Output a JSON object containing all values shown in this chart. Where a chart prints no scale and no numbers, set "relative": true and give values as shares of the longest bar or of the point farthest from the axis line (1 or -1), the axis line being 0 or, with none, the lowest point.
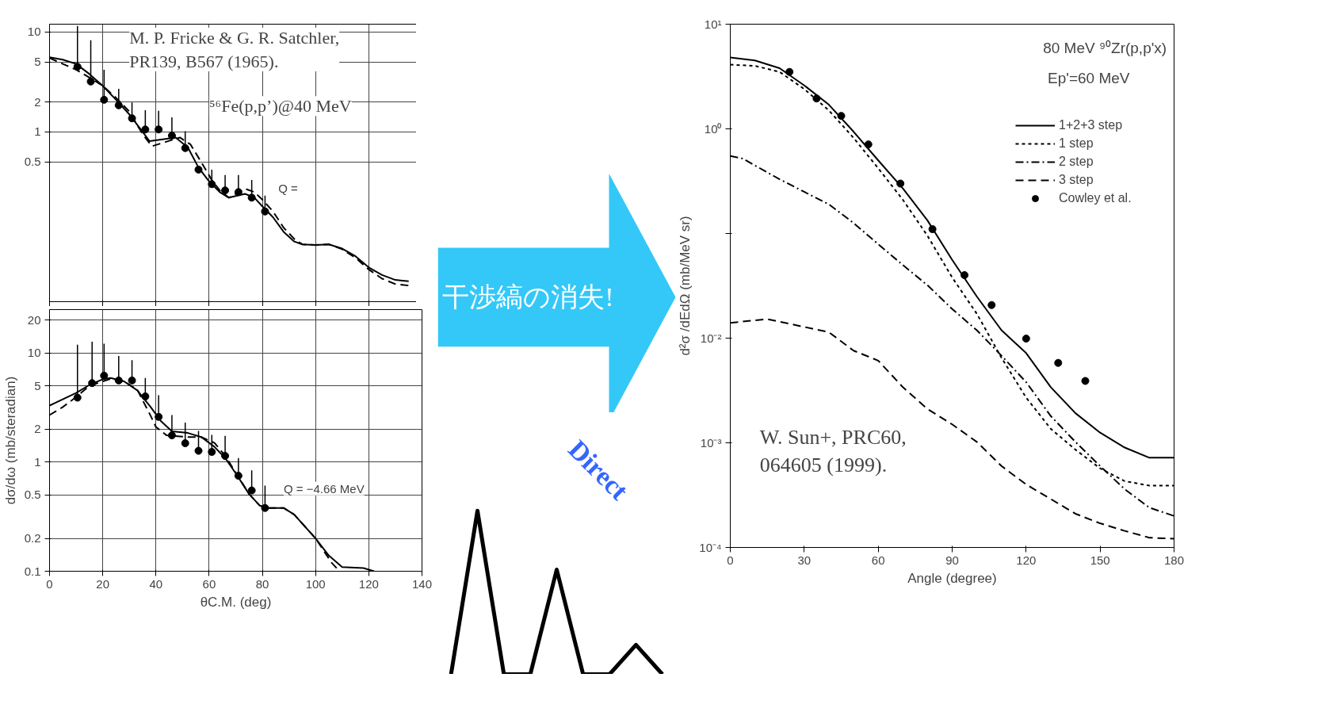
{
  "chart_data": [
    {
      "type": "line",
      "xlim": [
        0,
        140
      ],
      "xticks": [
        0,
        20,
        40,
        60,
        80,
        100,
        120,
        140
      ],
      "ylim": [
        0.02,
        12
      ],
      "yticks": [
        0.5,
        1,
        2,
        5,
        10
      ],
      "log": true,
      "grid": true,
      "tick_labels": "y",
      "annotations": [
        "M. P. Fricke & G. R. Satchler,\nPR139, B567 (1965).",
        "⁵⁶Fe(p,p’)@40 MeV",
        "Q ="
      ],
      "series": [
        {
          "type": "line",
          "color": "#000000",
          "line_style": "solid",
          "x": [
            0,
            5,
            10,
            15,
            20,
            25,
            30,
            35,
            37.6,
            42,
            47.4,
            52,
            56,
            60,
            64,
            67.4,
            73.5,
            77,
            80,
            84,
            88,
            92,
            95,
            100,
            105,
            110,
            115,
            120,
            125,
            130,
            135
          ],
          "values": [
            5.6,
            5.3,
            4.8,
            3.8,
            2.9,
            2.1,
            1.5,
            1.0,
            0.81,
            0.84,
            0.88,
            0.7,
            0.44,
            0.32,
            0.25,
            0.22,
            0.24,
            0.22,
            0.18,
            0.14,
            0.1,
            0.08,
            0.075,
            0.074,
            0.075,
            0.068,
            0.057,
            0.044,
            0.037,
            0.033,
            0.032
          ]
        },
        {
          "type": "line",
          "color": "#000000",
          "line_style": "dashed",
          "x": [
            0,
            5,
            10,
            15,
            20,
            25,
            30,
            35,
            38.5,
            44,
            49,
            53,
            57,
            61,
            64,
            67.4,
            73.5,
            77,
            80,
            84,
            88,
            92,
            95,
            100,
            105,
            110,
            115,
            120,
            125,
            130,
            135
          ],
          "values": [
            5.5,
            4.8,
            4.2,
            3.5,
            2.9,
            2.2,
            1.6,
            0.95,
            0.72,
            0.8,
            0.88,
            0.75,
            0.5,
            0.33,
            0.26,
            0.22,
            0.27,
            0.25,
            0.21,
            0.16,
            0.11,
            0.085,
            0.075,
            0.074,
            0.075,
            0.067,
            0.055,
            0.042,
            0.034,
            0.03,
            0.029
          ]
        },
        {
          "type": "scatter",
          "color": "#000000",
          "marker": "circle",
          "x": [
            10.5,
            15.5,
            20.5,
            26,
            31,
            36,
            41,
            46,
            51,
            56,
            61,
            66,
            71,
            76,
            81
          ],
          "values": [
            4.5,
            3.2,
            2.1,
            1.85,
            1.37,
            1.06,
            1.06,
            0.92,
            0.69,
            0.42,
            0.3,
            0.26,
            0.25,
            0.22,
            0.16
          ],
          "errors": [
            [
              4.5,
              11.5
            ],
            [
              3.2,
              8.3
            ],
            [
              2.1,
              4.2
            ],
            [
              1.85,
              2.7
            ],
            [
              1.37,
              1.97
            ],
            [
              1.06,
              1.65
            ],
            [
              1.06,
              1.63
            ],
            [
              0.92,
              1.4
            ],
            [
              0.69,
              1.02
            ],
            null,
            [
              0.3,
              0.42
            ],
            [
              0.26,
              0.37
            ],
            [
              0.25,
              0.37
            ],
            [
              0.22,
              0.33
            ],
            [
              0.16,
              0.23
            ]
          ]
        }
      ]
    },
    {
      "type": "line",
      "xlabel": "θC.M. (deg)",
      "ylabel": "dσ/dω (mb/steradian)",
      "xlim": [
        0,
        140
      ],
      "xticks": [
        0,
        20,
        40,
        60,
        80,
        100,
        120,
        140
      ],
      "ylim": [
        0.1,
        25
      ],
      "yticks": [
        0.1,
        0.2,
        0.5,
        1,
        2,
        5,
        10,
        20
      ],
      "log": true,
      "grid": true,
      "annotations": [
        "Q = −4.66 MeV"
      ],
      "series": [
        {
          "type": "line",
          "color": "#000000",
          "line_style": "solid",
          "x": [
            0,
            10,
            15,
            20,
            23,
            28,
            33,
            38,
            42,
            46,
            52,
            57,
            62,
            66,
            70,
            75,
            79,
            82,
            88,
            92,
            100,
            105,
            110,
            118,
            122
          ],
          "values": [
            3.3,
            4.3,
            5.1,
            5.75,
            5.9,
            5.5,
            4.55,
            3.2,
            2.36,
            1.92,
            1.85,
            1.7,
            1.38,
            1.09,
            0.79,
            0.51,
            0.4,
            0.38,
            0.38,
            0.33,
            0.2,
            0.139,
            0.109,
            0.107,
            0.1
          ]
        },
        {
          "type": "line",
          "color": "#000000",
          "line_style": "dashed",
          "x": [
            0,
            5,
            10,
            15,
            20,
            23,
            28,
            33,
            38,
            40,
            44,
            52,
            57,
            62,
            66,
            70,
            75,
            79,
            82,
            88,
            92,
            100,
            106,
            109
          ],
          "values": [
            2.7,
            3.2,
            3.95,
            5.0,
            5.5,
            5.8,
            5.5,
            4.6,
            2.66,
            2.1,
            1.76,
            1.7,
            1.7,
            1.5,
            1.15,
            0.8,
            0.51,
            0.4,
            0.38,
            0.38,
            0.33,
            0.2,
            0.12,
            0.1
          ]
        },
        {
          "type": "scatter",
          "color": "#000000",
          "marker": "circle",
          "x": [
            10.5,
            16,
            20.5,
            26,
            31,
            36,
            41,
            46,
            51,
            56,
            61,
            66,
            71,
            76,
            81
          ],
          "values": [
            3.9,
            5.3,
            6.2,
            5.6,
            5.6,
            4.0,
            2.6,
            1.76,
            1.49,
            1.27,
            1.24,
            1.14,
            0.75,
            0.55,
            0.38
          ],
          "errors": [
            [
              3.9,
              11.9
            ],
            [
              5.3,
              12.7
            ],
            [
              6.2,
              12.2
            ],
            [
              5.6,
              9.4
            ],
            [
              5.6,
              8.6
            ],
            [
              4.0,
              5.9
            ],
            [
              2.6,
              4.1
            ],
            [
              1.76,
              2.7
            ],
            [
              1.49,
              2.3
            ],
            [
              1.27,
              1.93
            ],
            [
              1.24,
              1.78
            ],
            [
              1.14,
              1.74
            ],
            [
              0.75,
              1.09
            ],
            [
              0.55,
              0.84
            ],
            [
              0.38,
              0.61
            ]
          ]
        }
      ]
    },
    {
      "type": "other",
      "annotations": [
        "干渉縞の消失!"
      ]
    },
    {
      "type": "line",
      "relative": true,
      "categories": [
        null,
        null,
        null,
        null,
        null,
        null,
        null,
        null,
        null
      ],
      "values": [
        0,
        1,
        0,
        0,
        0.64,
        0,
        0,
        0.18,
        0
      ],
      "color": "#000000",
      "annotations": [
        "Direct"
      ]
    },
    {
      "type": "line",
      "xlabel": "Angle (degree)",
      "ylabel": "d²σ /dEdΩ (mb/MeV sr)",
      "xlim": [
        0,
        180
      ],
      "xticks": [
        0,
        30,
        60,
        90,
        120,
        150,
        180
      ],
      "ylim": [
        0.0001,
        10
      ],
      "yticks": [
        {
          "value": 10,
          "label": "10¹"
        },
        {
          "value": 1,
          "label": "10⁰"
        },
        {
          "value": 0.1,
          "label": null
        },
        {
          "value": 0.01,
          "label": "10⁻²"
        },
        {
          "value": 0.001,
          "label": "10⁻³"
        },
        {
          "value": 0.0001,
          "label": "10⁻⁴"
        }
      ],
      "log": true,
      "legend": "top right",
      "annotations": [
        "80 MeV ⁹⁰Zr(p,p'x)",
        "Ep'=60 MeV",
        "W. Sun+, PRC60,\n064605 (1999)."
      ],
      "series": [
        {
          "name": "1+2+3 step",
          "type": "line",
          "color": "#000000",
          "line_style": "solid",
          "x": [
            0,
            10,
            20,
            30,
            40,
            50,
            60,
            70,
            80,
            90,
            100,
            110,
            120,
            130,
            140,
            150,
            160,
            170,
            180
          ],
          "values": [
            4.8,
            4.5,
            3.8,
            2.6,
            1.7,
            0.94,
            0.5,
            0.27,
            0.133,
            0.056,
            0.025,
            0.0119,
            0.0072,
            0.0034,
            0.00192,
            0.00125,
            0.0009,
            0.00072,
            0.00072
          ]
        },
        {
          "name": "1 step",
          "type": "line",
          "color": "#000000",
          "line_style": "dotted",
          "x": [
            0,
            10,
            20,
            30,
            40,
            50,
            60,
            70,
            80,
            90,
            100,
            110,
            120,
            130,
            140,
            150,
            160,
            170,
            180
          ],
          "values": [
            4.1,
            4.0,
            3.5,
            2.4,
            1.5,
            0.82,
            0.42,
            0.21,
            0.095,
            0.038,
            0.0171,
            0.0065,
            0.0027,
            0.00136,
            0.00086,
            0.00057,
            0.00043,
            0.00039,
            0.00039
          ]
        },
        {
          "name": "2 step",
          "type": "line",
          "color": "#000000",
          "line_style": "dashdot",
          "x": [
            0,
            5,
            20,
            30,
            40,
            50,
            60,
            70,
            80,
            90,
            100,
            110,
            120,
            130,
            140,
            150,
            160,
            170,
            180
          ],
          "values": [
            0.55,
            0.52,
            0.33,
            0.25,
            0.19,
            0.126,
            0.079,
            0.05,
            0.032,
            0.019,
            0.0119,
            0.0068,
            0.0038,
            0.0018,
            0.00102,
            0.0006,
            0.00036,
            0.00024,
            0.0002
          ]
        },
        {
          "name": "3 step",
          "type": "line",
          "color": "#000000",
          "line_style": "dashed",
          "x": [
            0,
            5,
            15,
            30,
            40,
            50,
            60,
            70,
            80,
            90,
            100,
            110,
            120,
            130,
            140,
            150,
            160,
            170,
            180
          ],
          "values": [
            0.014,
            0.0144,
            0.0152,
            0.0128,
            0.0114,
            0.0076,
            0.0061,
            0.0034,
            0.0021,
            0.0015,
            0.00102,
            0.0006,
            0.0004,
            0.00029,
            0.00021,
            0.00017,
            0.000144,
            0.000124,
            0.000121
          ]
        },
        {
          "name": "Cowley et al.",
          "type": "scatter",
          "color": "#000000",
          "marker": "circle",
          "x": [
            24,
            35,
            45,
            56,
            69,
            82,
            95,
            106,
            120,
            133,
            144
          ],
          "values": [
            3.5,
            1.95,
            1.33,
            0.71,
            0.3,
            0.11,
            0.04,
            0.0207,
            0.0099,
            0.0058,
            0.0039
          ]
        }
      ]
    }
  ]
}
